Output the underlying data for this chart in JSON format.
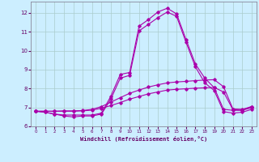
{
  "background_color": "#cceeff",
  "grid_color": "#aacccc",
  "line_color": "#aa00aa",
  "xlim": [
    -0.5,
    23.5
  ],
  "ylim": [
    6.0,
    12.6
  ],
  "yticks": [
    6,
    7,
    8,
    9,
    10,
    11,
    12
  ],
  "xticks": [
    0,
    1,
    2,
    3,
    4,
    5,
    6,
    7,
    8,
    9,
    10,
    11,
    12,
    13,
    14,
    15,
    16,
    17,
    18,
    19,
    20,
    21,
    22,
    23
  ],
  "xlabel": "Windchill (Refroidissement éolien,°C)",
  "curve1_x": [
    0,
    1,
    2,
    3,
    4,
    5,
    6,
    7,
    8,
    9,
    10,
    11,
    12,
    13,
    14,
    15,
    16,
    17,
    18,
    19,
    20,
    21,
    22,
    23
  ],
  "curve1_y": [
    6.8,
    6.75,
    6.65,
    6.6,
    6.6,
    6.6,
    6.6,
    6.7,
    7.6,
    8.75,
    8.85,
    11.3,
    11.65,
    12.05,
    12.25,
    11.95,
    10.6,
    9.3,
    8.55,
    8.05,
    6.9,
    6.85,
    6.85,
    7.05
  ],
  "curve2_x": [
    0,
    1,
    2,
    3,
    4,
    5,
    6,
    7,
    8,
    9,
    10,
    11,
    12,
    13,
    14,
    15,
    16,
    17,
    18,
    19,
    20,
    21,
    22,
    23
  ],
  "curve2_y": [
    6.8,
    6.75,
    6.65,
    6.55,
    6.5,
    6.55,
    6.55,
    6.65,
    7.45,
    8.55,
    8.7,
    11.05,
    11.4,
    11.75,
    12.05,
    11.82,
    10.45,
    9.15,
    8.3,
    7.9,
    6.78,
    6.7,
    6.75,
    6.9
  ],
  "curve3_x": [
    0,
    1,
    2,
    3,
    4,
    5,
    6,
    7,
    8,
    9,
    10,
    11,
    12,
    13,
    14,
    15,
    16,
    17,
    18,
    19,
    20,
    21,
    22,
    23
  ],
  "curve3_y": [
    6.8,
    6.8,
    6.8,
    6.82,
    6.82,
    6.84,
    6.9,
    7.05,
    7.28,
    7.52,
    7.75,
    7.92,
    8.08,
    8.2,
    8.3,
    8.35,
    8.38,
    8.42,
    8.45,
    8.47,
    8.1,
    6.92,
    6.9,
    7.05
  ],
  "curve4_x": [
    0,
    1,
    2,
    3,
    4,
    5,
    6,
    7,
    8,
    9,
    10,
    11,
    12,
    13,
    14,
    15,
    16,
    17,
    18,
    19,
    20,
    21,
    22,
    23
  ],
  "curve4_y": [
    6.8,
    6.8,
    6.8,
    6.8,
    6.8,
    6.82,
    6.86,
    6.96,
    7.1,
    7.26,
    7.44,
    7.58,
    7.72,
    7.82,
    7.92,
    7.96,
    7.99,
    8.02,
    8.04,
    8.06,
    7.82,
    6.88,
    6.86,
    6.98
  ]
}
